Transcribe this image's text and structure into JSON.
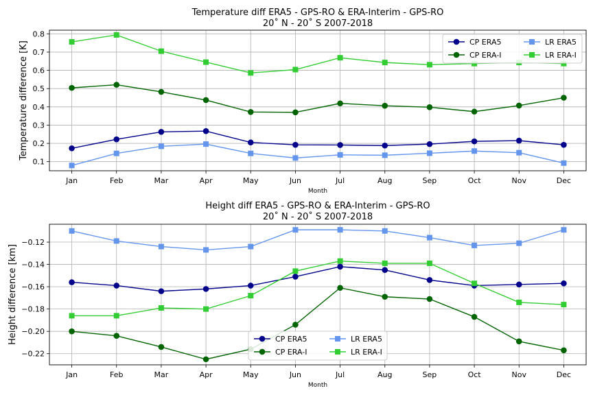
{
  "chart_data": [
    {
      "type": "line",
      "title": "Temperature diff ERA5 - GPS-RO & ERA-Interim - GPS-RO",
      "subtitle": "20˚ N - 20˚ S 2007-2018",
      "xlabel": "Month",
      "ylabel": "Temperature difference [K]",
      "categories": [
        "Jan",
        "Feb",
        "Mar",
        "Apr",
        "May",
        "Jun",
        "Jul",
        "Aug",
        "Sep",
        "Oct",
        "Nov",
        "Dec"
      ],
      "ylim": [
        0.05,
        0.82
      ],
      "yticks": [
        0.1,
        0.2,
        0.3,
        0.4,
        0.5,
        0.6,
        0.7,
        0.8
      ],
      "ytick_labels": [
        "0.1",
        "0.2",
        "0.3",
        "0.4",
        "0.5",
        "0.6",
        "0.7",
        "0.8"
      ],
      "grid": true,
      "legend_position": "upper-right",
      "legend_columns": 2,
      "series": [
        {
          "name": "CP ERA5",
          "color": "#00008b",
          "marker": "circle",
          "values": [
            0.173,
            0.222,
            0.263,
            0.267,
            0.205,
            0.192,
            0.191,
            0.188,
            0.196,
            0.211,
            0.215,
            0.192
          ]
        },
        {
          "name": "CP ERA-I",
          "color": "#006400",
          "marker": "circle",
          "values": [
            0.504,
            0.521,
            0.482,
            0.437,
            0.372,
            0.37,
            0.419,
            0.406,
            0.398,
            0.374,
            0.407,
            0.45
          ]
        },
        {
          "name": "LR ERA5",
          "color": "#6495ed",
          "marker": "square",
          "values": [
            0.079,
            0.145,
            0.184,
            0.196,
            0.145,
            0.12,
            0.137,
            0.135,
            0.146,
            0.158,
            0.149,
            0.092
          ]
        },
        {
          "name": "LR ERA-I",
          "color": "#32cd32",
          "marker": "square",
          "values": [
            0.756,
            0.794,
            0.705,
            0.645,
            0.586,
            0.604,
            0.669,
            0.643,
            0.631,
            0.637,
            0.643,
            0.637
          ]
        }
      ]
    },
    {
      "type": "line",
      "title": "Height diff ERA5 - GPS-RO & ERA-Interim - GPS-RO",
      "subtitle": "20˚ N - 20˚ S 2007-2018",
      "xlabel": "Month",
      "ylabel": "Height difference [km]",
      "categories": [
        "Jan",
        "Feb",
        "Mar",
        "Apr",
        "May",
        "Jun",
        "Jul",
        "Aug",
        "Sep",
        "Oct",
        "Nov",
        "Dec"
      ],
      "ylim": [
        -0.23,
        -0.104
      ],
      "yticks": [
        -0.12,
        -0.14,
        -0.16,
        -0.18,
        -0.2,
        -0.22
      ],
      "ytick_labels": [
        "−0.12",
        "−0.14",
        "−0.16",
        "−0.18",
        "−0.20",
        "−0.22"
      ],
      "grid": true,
      "legend_position": "lower-center",
      "legend_columns": 2,
      "series": [
        {
          "name": "CP ERA5",
          "color": "#00008b",
          "marker": "circle",
          "values": [
            -0.156,
            -0.159,
            -0.164,
            -0.162,
            -0.159,
            -0.151,
            -0.142,
            -0.145,
            -0.154,
            -0.159,
            -0.158,
            -0.157
          ]
        },
        {
          "name": "CP ERA-I",
          "color": "#006400",
          "marker": "circle",
          "values": [
            -0.2,
            -0.204,
            -0.214,
            -0.225,
            -0.216,
            -0.194,
            -0.161,
            -0.169,
            -0.171,
            -0.187,
            -0.209,
            -0.217
          ]
        },
        {
          "name": "LR ERA5",
          "color": "#6495ed",
          "marker": "square",
          "values": [
            -0.11,
            -0.119,
            -0.124,
            -0.127,
            -0.124,
            -0.109,
            -0.109,
            -0.11,
            -0.116,
            -0.123,
            -0.121,
            -0.109
          ]
        },
        {
          "name": "LR ERA-I",
          "color": "#32cd32",
          "marker": "square",
          "values": [
            -0.186,
            -0.186,
            -0.179,
            -0.18,
            -0.168,
            -0.146,
            -0.137,
            -0.139,
            -0.139,
            -0.157,
            -0.174,
            -0.176
          ]
        }
      ]
    }
  ]
}
